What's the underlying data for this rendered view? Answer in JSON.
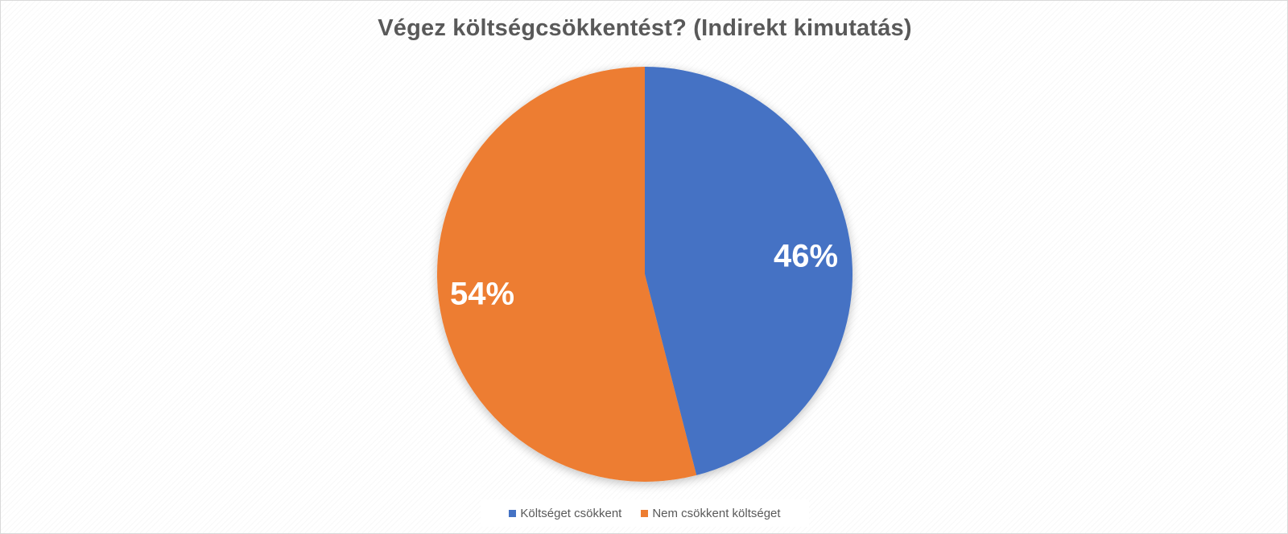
{
  "chart_data": {
    "type": "pie",
    "title": "Végez költségcsökkentést? (Indirekt kimutatás)",
    "categories": [
      "Költséget csökkent",
      "Nem csökkent költséget"
    ],
    "values": [
      46,
      54
    ],
    "data_labels": [
      "46%",
      "54%"
    ],
    "colors": [
      "#4472C4",
      "#ED7D31"
    ],
    "legend_position": "bottom"
  }
}
